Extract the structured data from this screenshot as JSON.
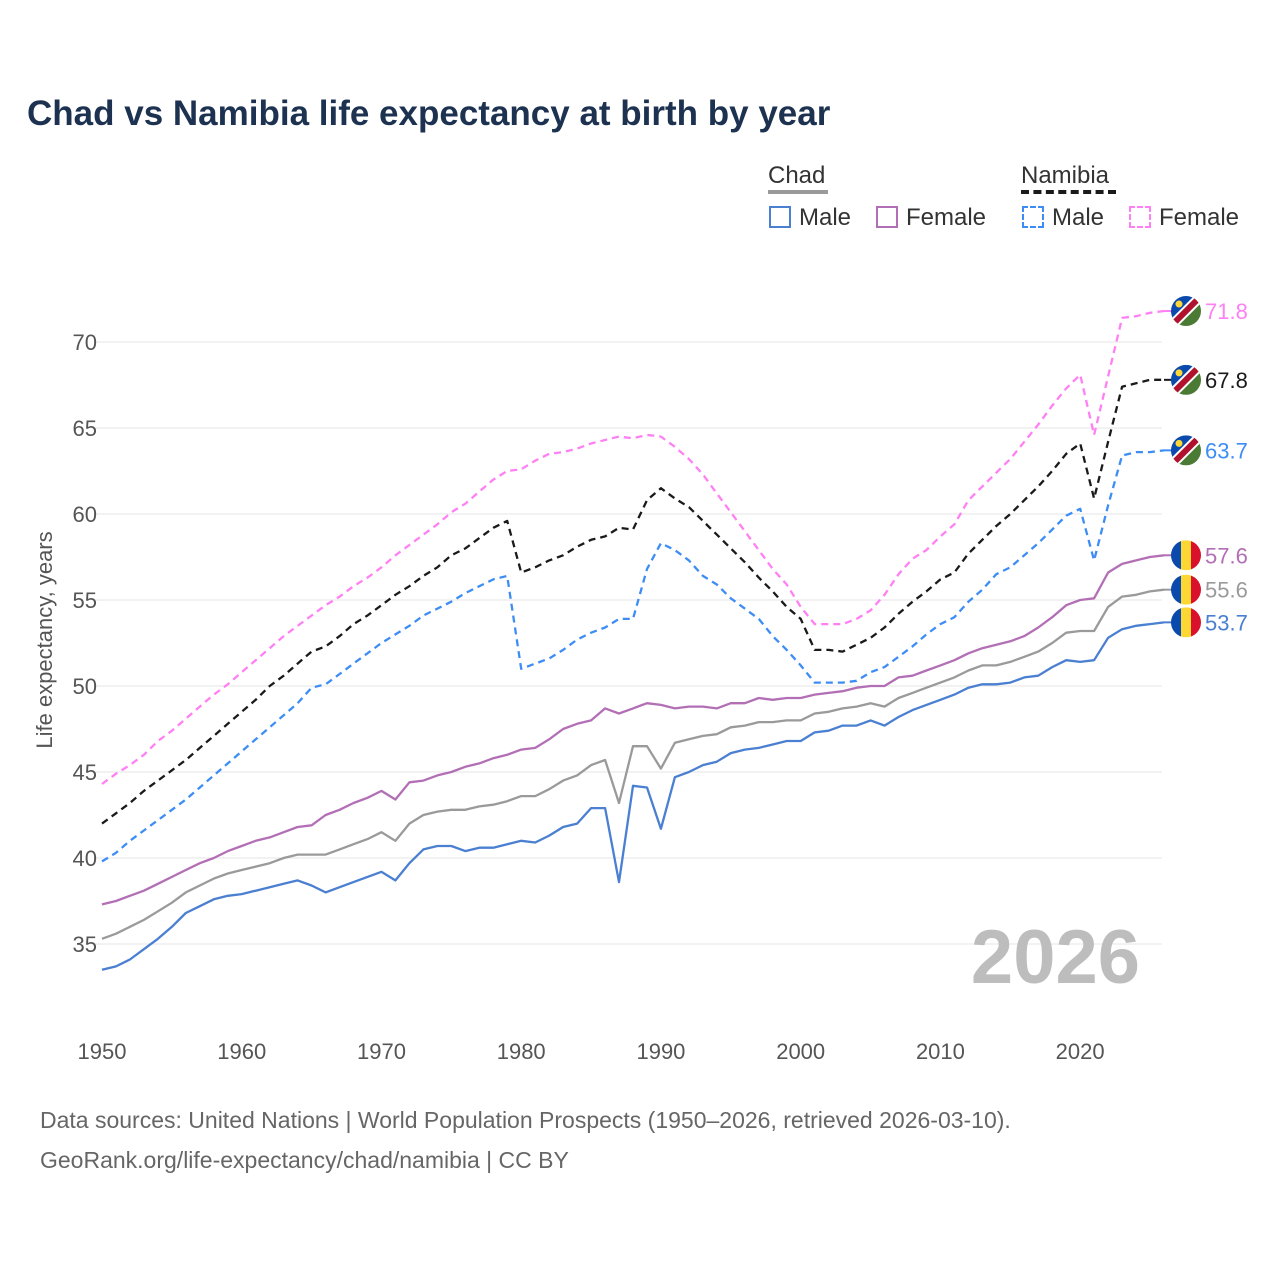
{
  "title": "Chad vs Namibia life expectancy at birth by year",
  "legend": {
    "groups": [
      {
        "name": "Chad",
        "items": [
          {
            "label": "Male"
          },
          {
            "label": "Female"
          }
        ]
      },
      {
        "name": "Namibia",
        "items": [
          {
            "label": "Male"
          },
          {
            "label": "Female"
          }
        ]
      }
    ]
  },
  "watermark_year": "2026",
  "footer": {
    "line1": "Data sources: United Nations | World Population Prospects (1950–2026, retrieved 2026-03-10).",
    "line2": "GeoRank.org/life-expectancy/chad/namibia | CC BY"
  },
  "chart_data": {
    "type": "line",
    "title": "Chad vs Namibia life expectancy at birth by year",
    "xlabel": "",
    "ylabel": "Life expectancy, years",
    "xlim": [
      1950,
      2026
    ],
    "ylim": [
      32,
      73
    ],
    "xticks": [
      1950,
      1960,
      1970,
      1980,
      1990,
      2000,
      2010,
      2020
    ],
    "yticks": [
      35,
      40,
      45,
      50,
      55,
      60,
      65,
      70
    ],
    "grid": true,
    "legend_position": "top-right",
    "x_start": 1950,
    "series": [
      {
        "name": "Namibia Female",
        "country": "Namibia",
        "flag": "namibia",
        "color": "#ff80f4",
        "dashed": true,
        "end_label": "71.8",
        "values": [
          44.3,
          44.9,
          45.4,
          46.0,
          46.8,
          47.4,
          48.1,
          48.8,
          49.5,
          50.1,
          50.8,
          51.5,
          52.2,
          52.9,
          53.5,
          54.1,
          54.7,
          55.2,
          55.8,
          56.3,
          56.9,
          57.6,
          58.2,
          58.8,
          59.4,
          60.1,
          60.6,
          61.3,
          62.0,
          62.5,
          62.6,
          63.1,
          63.5,
          63.6,
          63.8,
          64.1,
          64.3,
          64.5,
          64.4,
          64.6,
          64.5,
          63.9,
          63.2,
          62.3,
          61.2,
          60.1,
          59.0,
          57.9,
          56.8,
          55.9,
          54.6,
          53.6,
          53.6,
          53.6,
          53.9,
          54.4,
          55.3,
          56.5,
          57.4,
          57.9,
          58.7,
          59.4,
          60.8,
          61.6,
          62.4,
          63.2,
          64.2,
          65.2,
          66.3,
          67.3,
          68.1,
          64.6,
          68.0,
          71.4,
          71.5,
          71.7,
          71.8
        ]
      },
      {
        "name": "Namibia",
        "country": "Namibia",
        "flag": "namibia",
        "color": "#1a1a1a",
        "dashed": true,
        "end_label": "67.8",
        "values": [
          42.0,
          42.6,
          43.2,
          43.9,
          44.5,
          45.1,
          45.7,
          46.4,
          47.1,
          47.8,
          48.5,
          49.2,
          50.0,
          50.6,
          51.3,
          52.0,
          52.3,
          52.9,
          53.6,
          54.1,
          54.7,
          55.3,
          55.8,
          56.4,
          56.9,
          57.6,
          58.0,
          58.6,
          59.2,
          59.6,
          56.6,
          56.9,
          57.3,
          57.6,
          58.1,
          58.5,
          58.7,
          59.2,
          59.1,
          60.8,
          61.5,
          60.9,
          60.4,
          59.6,
          58.8,
          58.0,
          57.2,
          56.3,
          55.5,
          54.6,
          53.9,
          52.1,
          52.1,
          52.0,
          52.4,
          52.8,
          53.4,
          54.2,
          54.9,
          55.5,
          56.2,
          56.6,
          57.7,
          58.5,
          59.3,
          60.0,
          60.8,
          61.6,
          62.5,
          63.5,
          64.1,
          60.9,
          64.2,
          67.4,
          67.6,
          67.8,
          67.8
        ]
      },
      {
        "name": "Namibia Male",
        "country": "Namibia",
        "flag": "namibia",
        "color": "#3d8df5",
        "dashed": true,
        "end_label": "63.7",
        "values": [
          39.8,
          40.3,
          41.0,
          41.6,
          42.2,
          42.8,
          43.4,
          44.1,
          44.8,
          45.5,
          46.2,
          46.9,
          47.6,
          48.3,
          49.0,
          49.9,
          50.1,
          50.7,
          51.3,
          51.9,
          52.5,
          53.0,
          53.5,
          54.1,
          54.5,
          54.9,
          55.4,
          55.8,
          56.2,
          56.4,
          51.0,
          51.3,
          51.6,
          52.1,
          52.7,
          53.1,
          53.4,
          53.9,
          53.9,
          56.8,
          58.3,
          57.9,
          57.3,
          56.4,
          55.9,
          55.1,
          54.5,
          53.9,
          52.9,
          52.1,
          51.2,
          50.2,
          50.2,
          50.2,
          50.3,
          50.8,
          51.1,
          51.7,
          52.3,
          53.0,
          53.6,
          54.0,
          54.9,
          55.6,
          56.5,
          56.9,
          57.6,
          58.3,
          59.1,
          59.9,
          60.3,
          57.3,
          60.5,
          63.4,
          63.6,
          63.6,
          63.7
        ]
      },
      {
        "name": "Chad Female",
        "country": "Chad",
        "flag": "chad",
        "color": "#b36fb5",
        "dashed": false,
        "end_label": "57.6",
        "values": [
          37.3,
          37.5,
          37.8,
          38.1,
          38.5,
          38.9,
          39.3,
          39.7,
          40.0,
          40.4,
          40.7,
          41.0,
          41.2,
          41.5,
          41.8,
          41.9,
          42.5,
          42.8,
          43.2,
          43.5,
          43.9,
          43.4,
          44.4,
          44.5,
          44.8,
          45.0,
          45.3,
          45.5,
          45.8,
          46.0,
          46.3,
          46.4,
          46.9,
          47.5,
          47.8,
          48.0,
          48.7,
          48.4,
          48.7,
          49.0,
          48.9,
          48.7,
          48.8,
          48.8,
          48.7,
          49.0,
          49.0,
          49.3,
          49.2,
          49.3,
          49.3,
          49.5,
          49.6,
          49.7,
          49.9,
          50.0,
          50.0,
          50.5,
          50.6,
          50.9,
          51.2,
          51.5,
          51.9,
          52.2,
          52.4,
          52.6,
          52.9,
          53.4,
          54.0,
          54.7,
          55.0,
          55.1,
          56.6,
          57.1,
          57.3,
          57.5,
          57.6
        ]
      },
      {
        "name": "Chad",
        "country": "Chad",
        "flag": "chad",
        "color": "#9a9a9a",
        "dashed": false,
        "end_label": "55.6",
        "values": [
          35.3,
          35.6,
          36.0,
          36.4,
          36.9,
          37.4,
          38.0,
          38.4,
          38.8,
          39.1,
          39.3,
          39.5,
          39.7,
          40.0,
          40.2,
          40.2,
          40.2,
          40.5,
          40.8,
          41.1,
          41.5,
          41.0,
          42.0,
          42.5,
          42.7,
          42.8,
          42.8,
          43.0,
          43.1,
          43.3,
          43.6,
          43.6,
          44.0,
          44.5,
          44.8,
          45.4,
          45.7,
          43.2,
          46.5,
          46.5,
          45.2,
          46.7,
          46.9,
          47.1,
          47.2,
          47.6,
          47.7,
          47.9,
          47.9,
          48.0,
          48.0,
          48.4,
          48.5,
          48.7,
          48.8,
          49.0,
          48.8,
          49.3,
          49.6,
          49.9,
          50.2,
          50.5,
          50.9,
          51.2,
          51.2,
          51.4,
          51.7,
          52.0,
          52.5,
          53.1,
          53.2,
          53.2,
          54.6,
          55.2,
          55.3,
          55.5,
          55.6
        ]
      },
      {
        "name": "Chad Male",
        "country": "Chad",
        "flag": "chad",
        "color": "#4a7fd1",
        "dashed": false,
        "end_label": "53.7",
        "values": [
          33.5,
          33.7,
          34.1,
          34.7,
          35.3,
          36.0,
          36.8,
          37.2,
          37.6,
          37.8,
          37.9,
          38.1,
          38.3,
          38.5,
          38.7,
          38.4,
          38.0,
          38.3,
          38.6,
          38.9,
          39.2,
          38.7,
          39.7,
          40.5,
          40.7,
          40.7,
          40.4,
          40.6,
          40.6,
          40.8,
          41.0,
          40.9,
          41.3,
          41.8,
          42.0,
          42.9,
          42.9,
          38.6,
          44.2,
          44.1,
          41.7,
          44.7,
          45.0,
          45.4,
          45.6,
          46.1,
          46.3,
          46.4,
          46.6,
          46.8,
          46.8,
          47.3,
          47.4,
          47.7,
          47.7,
          48.0,
          47.7,
          48.2,
          48.6,
          48.9,
          49.2,
          49.5,
          49.9,
          50.1,
          50.1,
          50.2,
          50.5,
          50.6,
          51.1,
          51.5,
          51.4,
          51.5,
          52.8,
          53.3,
          53.5,
          53.6,
          53.7
        ]
      }
    ]
  },
  "colors": {
    "title": "#1c3250",
    "chad_male": "#4a7fd1",
    "chad_female": "#b36fb5",
    "chad_total": "#9a9a9a",
    "namibia_male": "#3d8df5",
    "namibia_female": "#ff80f4",
    "namibia_total": "#1a1a1a"
  }
}
